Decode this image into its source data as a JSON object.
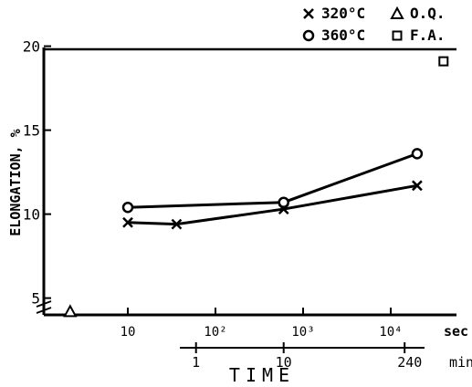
{
  "chart_data": {
    "type": "line",
    "ylabel": "ELONGATION, %",
    "xlabel": "TIME",
    "x_scale": "log",
    "x_unit": "sec",
    "xlim": [
      1,
      90000
    ],
    "ylim": [
      4,
      20
    ],
    "x_ticks": [
      {
        "value": 10,
        "label": "10"
      },
      {
        "value": 100,
        "label": "10²"
      },
      {
        "value": 1000,
        "label": "10³"
      },
      {
        "value": 10000,
        "label": "10⁴"
      }
    ],
    "x_unit_label": "sec",
    "y_ticks": [
      {
        "value": 5,
        "label": "5"
      },
      {
        "value": 10,
        "label": "10"
      },
      {
        "value": 15,
        "label": "15"
      },
      {
        "value": 20,
        "label": "20"
      }
    ],
    "secondary_axis": {
      "unit_label": "min",
      "ticks": [
        {
          "minutes": 1,
          "label": "1"
        },
        {
          "minutes": 10,
          "label": "10"
        },
        {
          "minutes": 240,
          "label": "240"
        }
      ]
    },
    "legend": {
      "placement": "top-right",
      "entries": [
        {
          "marker": "cross",
          "label": "320°C"
        },
        {
          "marker": "triangle",
          "label": "O.Q."
        },
        {
          "marker": "circle",
          "label": "360°C"
        },
        {
          "marker": "square",
          "label": "F.A."
        }
      ]
    },
    "series": [
      {
        "name": "320°C",
        "marker": "cross",
        "connected": true,
        "points": [
          {
            "x": 10,
            "y": 9.5
          },
          {
            "x": 36,
            "y": 9.4
          },
          {
            "x": 600,
            "y": 10.3
          },
          {
            "x": 20000,
            "y": 11.7
          }
        ]
      },
      {
        "name": "360°C",
        "marker": "circle",
        "connected": true,
        "points": [
          {
            "x": 10,
            "y": 10.4
          },
          {
            "x": 600,
            "y": 10.7
          },
          {
            "x": 20000,
            "y": 13.6
          }
        ]
      },
      {
        "name": "O.Q.",
        "marker": "triangle",
        "connected": false,
        "points": [
          {
            "x": 2.2,
            "y": 4.2
          }
        ]
      },
      {
        "name": "F.A.",
        "marker": "square",
        "connected": false,
        "points": [
          {
            "x": 40000,
            "y": 19.1
          }
        ]
      }
    ]
  }
}
